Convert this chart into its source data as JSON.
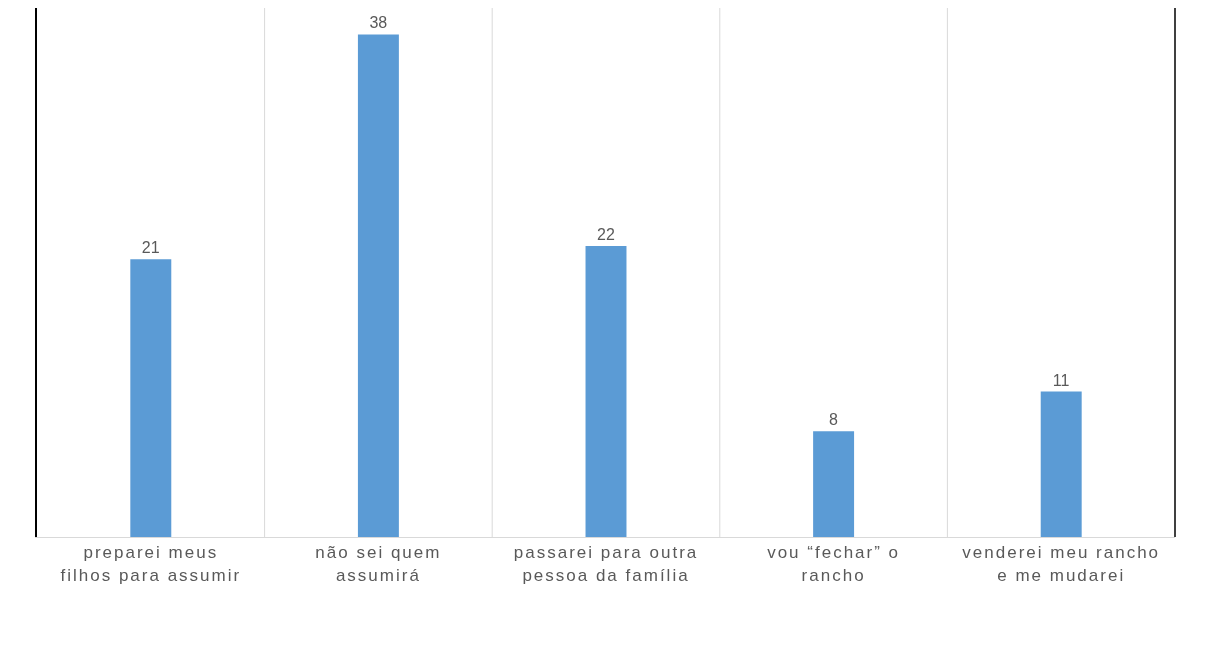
{
  "chart_data": {
    "type": "bar",
    "categories": [
      "preparei meus filhos para assumir",
      "não sei quem assumirá",
      "passarei para outra pessoa da família",
      "vou “fechar” o rancho",
      "venderei meu rancho e me mudarei"
    ],
    "values": [
      21,
      38,
      22,
      8,
      11
    ],
    "color": "#5b9bd5",
    "ylim": [
      0,
      40
    ],
    "data_labels": true,
    "grid": "x",
    "tick_labels": "x"
  }
}
